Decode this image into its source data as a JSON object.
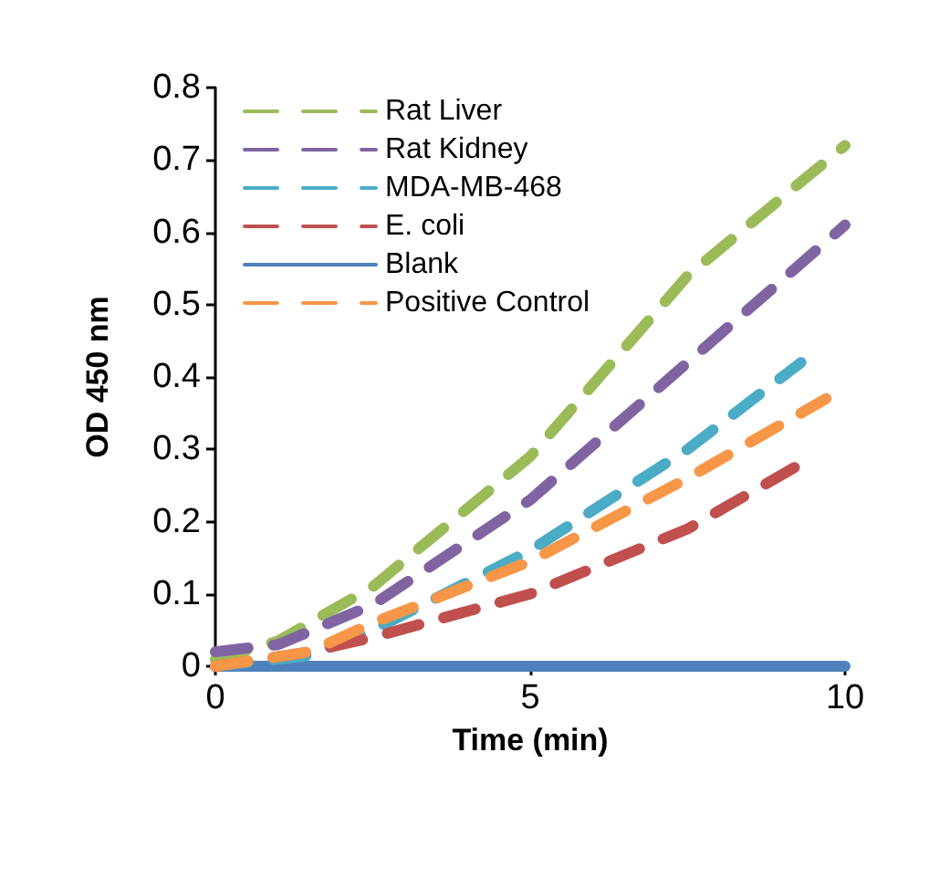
{
  "chart_data": {
    "type": "line",
    "xlabel": "Time (min)",
    "ylabel": "OD 450 nm",
    "xlim": [
      0,
      10
    ],
    "xticks": [
      0,
      5,
      10
    ],
    "ylim": [
      0,
      0.8
    ],
    "yticks": [
      0,
      0.1,
      0.2,
      0.3,
      0.4,
      0.5,
      0.6,
      0.7,
      0.8
    ],
    "grid": false,
    "legend": "top left",
    "marker": "none",
    "series": [
      {
        "name": "Rat Liver",
        "color": "#9bbb59",
        "line_style": "dashed",
        "x": [
          0,
          1,
          2.5,
          5,
          7.5,
          10
        ],
        "values": [
          0.01,
          0.035,
          0.11,
          0.29,
          0.54,
          0.72
        ]
      },
      {
        "name": "Rat Kidney",
        "color": "#8064a2",
        "line_style": "dashed",
        "x": [
          0,
          1,
          2.5,
          5,
          7.5,
          10
        ],
        "values": [
          0.02,
          0.03,
          0.085,
          0.23,
          0.42,
          0.61
        ]
      },
      {
        "name": "MDA-MB-468",
        "color": "#4bacc6",
        "line_style": "dashed",
        "x": [
          0,
          1.5,
          2.5,
          5,
          7.5,
          9.3
        ],
        "values": [
          0,
          0.015,
          0.05,
          0.16,
          0.3,
          0.42
        ]
      },
      {
        "name": "E. coli",
        "color": "#c0504d",
        "line_style": "dashed",
        "x": [
          0,
          1.5,
          2.5,
          5,
          7.5,
          9.3
        ],
        "values": [
          0,
          0.02,
          0.04,
          0.1,
          0.19,
          0.28
        ]
      },
      {
        "name": "Blank",
        "color": "#4f81bd",
        "line_style": "solid",
        "x": [
          0,
          10
        ],
        "values": [
          0,
          0
        ]
      },
      {
        "name": "Positive Control",
        "color": "#f79646",
        "line_style": "dashed",
        "x": [
          0,
          1.5,
          2.5,
          5,
          7.5,
          9.7
        ],
        "values": [
          0,
          0.02,
          0.06,
          0.145,
          0.26,
          0.37
        ]
      }
    ]
  }
}
